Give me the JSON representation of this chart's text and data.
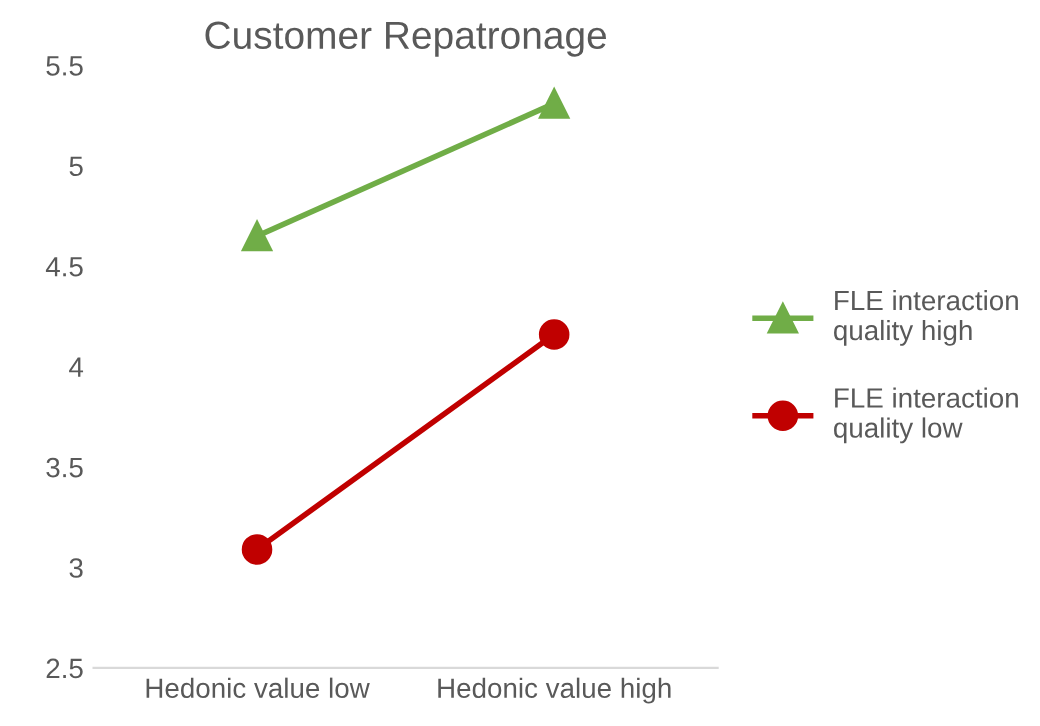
{
  "chart_data": {
    "type": "line",
    "title": "Customer Repatronage",
    "categories": [
      "Hedonic value low",
      "Hedonic value high"
    ],
    "series": [
      {
        "name": "FLE interaction quality high",
        "color": "#70ad47",
        "values": [
          4.65,
          5.31
        ],
        "marker": "triangle"
      },
      {
        "name": "FLE interaction quality low",
        "color": "#c00000",
        "values": [
          3.09,
          4.16
        ],
        "marker": "circle"
      }
    ],
    "ylim": [
      2.5,
      5.5
    ],
    "yticks": [
      2.5,
      3,
      3.5,
      4,
      4.5,
      5,
      5.5
    ],
    "grid": false,
    "legend": "right",
    "line_style": "solid"
  }
}
